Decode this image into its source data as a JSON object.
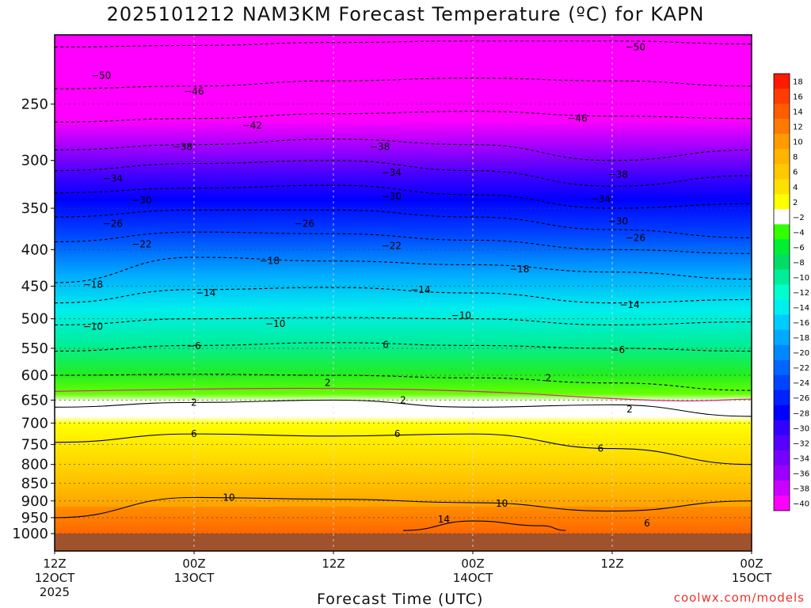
{
  "title": "2025101212 NAM3KM Forecast Temperature (ºC) for KAPN",
  "credit": "coolwx.com/models",
  "chart_data": {
    "type": "heatmap",
    "title": "2025101212 NAM3KM Forecast Temperature (ºC) for KAPN",
    "xlabel": "Forecast Time (UTC)",
    "ylabel": "",
    "x_ticks": [
      {
        "h": 0,
        "line1": "12Z",
        "line2": "12OCT",
        "line3": "2025"
      },
      {
        "h": 12,
        "line1": "00Z",
        "line2": "13OCT",
        "line3": ""
      },
      {
        "h": 24,
        "line1": "12Z",
        "line2": "",
        "line3": ""
      },
      {
        "h": 36,
        "line1": "00Z",
        "line2": "14OCT",
        "line3": ""
      },
      {
        "h": 48,
        "line1": "12Z",
        "line2": "",
        "line3": ""
      },
      {
        "h": 60,
        "line1": "00Z",
        "line2": "15OCT",
        "line3": ""
      }
    ],
    "xlim": [
      0,
      60
    ],
    "ylim_hpa": [
      1000,
      200
    ],
    "y_ticks": [
      250,
      300,
      350,
      400,
      450,
      500,
      550,
      600,
      650,
      700,
      750,
      800,
      850,
      900,
      950,
      1000
    ],
    "colorbar_ticks": [
      18,
      16,
      14,
      12,
      10,
      8,
      6,
      4,
      2,
      -2,
      -4,
      -6,
      -8,
      -10,
      -12,
      -14,
      -16,
      -18,
      -20,
      -22,
      -24,
      -26,
      -28,
      -30,
      -32,
      -34,
      -36,
      -38,
      -40
    ],
    "colorbar_colors": [
      "#ff1a00",
      "#ff3d00",
      "#ff5c00",
      "#ff7a00",
      "#ff9a00",
      "#ffb400",
      "#ffc800",
      "#ffe000",
      "#ffff00",
      "#ffffff",
      "#33ff00",
      "#00ee33",
      "#00dd66",
      "#00ee99",
      "#00ffcc",
      "#00eeee",
      "#00ccff",
      "#00aaff",
      "#0088ff",
      "#0066ff",
      "#0044ff",
      "#0022ff",
      "#0000ff",
      "#3300ff",
      "#5500ff",
      "#7700ff",
      "#9900ff",
      "#cc00ff",
      "#ff00ff"
    ],
    "contour_levels": [
      -50,
      -46,
      -42,
      -38,
      -34,
      -30,
      -26,
      -22,
      -18,
      -14,
      -10,
      -6,
      -2,
      2,
      6,
      10,
      14
    ],
    "contours": [
      {
        "level": -50,
        "points": [
          [
            0,
            208
          ],
          [
            12,
            207
          ],
          [
            24,
            205
          ],
          [
            36,
            204
          ],
          [
            48,
            204
          ],
          [
            60,
            206
          ]
        ]
      },
      {
        "level": -46,
        "points": [
          [
            0,
            238
          ],
          [
            12,
            236
          ],
          [
            24,
            232
          ],
          [
            36,
            230
          ],
          [
            48,
            232
          ],
          [
            60,
            236
          ]
        ]
      },
      {
        "level": -42,
        "points": [
          [
            0,
            265
          ],
          [
            12,
            262
          ],
          [
            24,
            258
          ],
          [
            36,
            256
          ],
          [
            48,
            260
          ],
          [
            60,
            262
          ]
        ]
      },
      {
        "level": -38,
        "points": [
          [
            0,
            290
          ],
          [
            12,
            285
          ],
          [
            24,
            280
          ],
          [
            36,
            285
          ],
          [
            48,
            300
          ],
          [
            60,
            290
          ]
        ]
      },
      {
        "level": -34,
        "points": [
          [
            0,
            310
          ],
          [
            12,
            303
          ],
          [
            24,
            300
          ],
          [
            36,
            310
          ],
          [
            48,
            326
          ],
          [
            60,
            315
          ]
        ]
      },
      {
        "level": -30,
        "points": [
          [
            0,
            333
          ],
          [
            12,
            328
          ],
          [
            24,
            325
          ],
          [
            36,
            335
          ],
          [
            48,
            350
          ],
          [
            60,
            345
          ]
        ]
      },
      {
        "level": -26,
        "points": [
          [
            0,
            360
          ],
          [
            12,
            352
          ],
          [
            24,
            352
          ],
          [
            36,
            360
          ],
          [
            48,
            375
          ],
          [
            60,
            385
          ]
        ]
      },
      {
        "level": -22,
        "points": [
          [
            0,
            390
          ],
          [
            12,
            378
          ],
          [
            24,
            380
          ],
          [
            36,
            388
          ],
          [
            48,
            400
          ],
          [
            60,
            405
          ]
        ]
      },
      {
        "level": -18,
        "points": [
          [
            0,
            445
          ],
          [
            12,
            410
          ],
          [
            24,
            415
          ],
          [
            36,
            420
          ],
          [
            48,
            430
          ],
          [
            60,
            440
          ]
        ]
      },
      {
        "level": -14,
        "points": [
          [
            0,
            475
          ],
          [
            12,
            455
          ],
          [
            24,
            452
          ],
          [
            36,
            460
          ],
          [
            48,
            475
          ],
          [
            60,
            470
          ]
        ]
      },
      {
        "level": -10,
        "points": [
          [
            0,
            510
          ],
          [
            12,
            500
          ],
          [
            24,
            498
          ],
          [
            36,
            500
          ],
          [
            48,
            510
          ],
          [
            60,
            505
          ]
        ]
      },
      {
        "level": -6,
        "points": [
          [
            0,
            555
          ],
          [
            12,
            545
          ],
          [
            24,
            540
          ],
          [
            36,
            545
          ],
          [
            48,
            550
          ],
          [
            60,
            555
          ]
        ]
      },
      {
        "level": -2,
        "points": [
          [
            0,
            600
          ],
          [
            12,
            598
          ],
          [
            24,
            600
          ],
          [
            36,
            605
          ],
          [
            48,
            615
          ],
          [
            60,
            630
          ]
        ]
      },
      {
        "level": 2,
        "points": [
          [
            0,
            665
          ],
          [
            12,
            655
          ],
          [
            24,
            650
          ],
          [
            36,
            665
          ],
          [
            48,
            660
          ],
          [
            60,
            685
          ]
        ]
      },
      {
        "level": 6,
        "points": [
          [
            0,
            745
          ],
          [
            12,
            725
          ],
          [
            24,
            730
          ],
          [
            36,
            725
          ],
          [
            48,
            760
          ],
          [
            60,
            800
          ]
        ]
      },
      {
        "level": 10,
        "points": [
          [
            0,
            950
          ],
          [
            12,
            890
          ],
          [
            24,
            895
          ],
          [
            36,
            905
          ],
          [
            48,
            930
          ],
          [
            60,
            900
          ]
        ]
      },
      {
        "level": 14,
        "points": [
          [
            30,
            990
          ],
          [
            36,
            960
          ],
          [
            42,
            975
          ],
          [
            44,
            990
          ]
        ]
      }
    ],
    "contour_labels": [
      {
        "text": "-50",
        "h": 4,
        "p": 228
      },
      {
        "text": "-50",
        "h": 50,
        "p": 208
      },
      {
        "text": "-46",
        "h": 12,
        "p": 240
      },
      {
        "text": "-46",
        "h": 45,
        "p": 262
      },
      {
        "text": "-42",
        "h": 17,
        "p": 268
      },
      {
        "text": "-38",
        "h": 11,
        "p": 287
      },
      {
        "text": "-38",
        "h": 28,
        "p": 287
      },
      {
        "text": "-38",
        "h": 48.5,
        "p": 314
      },
      {
        "text": "-34",
        "h": 5,
        "p": 318
      },
      {
        "text": "-34",
        "h": 29,
        "p": 312
      },
      {
        "text": "-34",
        "h": 47,
        "p": 340
      },
      {
        "text": "-30",
        "h": 7.5,
        "p": 341
      },
      {
        "text": "-30",
        "h": 29,
        "p": 337
      },
      {
        "text": "-30",
        "h": 48.5,
        "p": 365
      },
      {
        "text": "-26",
        "h": 5,
        "p": 368
      },
      {
        "text": "-26",
        "h": 21.5,
        "p": 368
      },
      {
        "text": "-26",
        "h": 50,
        "p": 385
      },
      {
        "text": "-22",
        "h": 7.5,
        "p": 393
      },
      {
        "text": "-22",
        "h": 29,
        "p": 395
      },
      {
        "text": "-18",
        "h": 3.3,
        "p": 448
      },
      {
        "text": "-18",
        "h": 18.5,
        "p": 415
      },
      {
        "text": "-18",
        "h": 40,
        "p": 426
      },
      {
        "text": "-14",
        "h": 13,
        "p": 460
      },
      {
        "text": "-14",
        "h": 31.5,
        "p": 455
      },
      {
        "text": "-14",
        "h": 49.5,
        "p": 478
      },
      {
        "text": "-10",
        "h": 3.3,
        "p": 513
      },
      {
        "text": "-10",
        "h": 19,
        "p": 508
      },
      {
        "text": "-10",
        "h": 35,
        "p": 495
      },
      {
        "text": "-6",
        "h": 12,
        "p": 546
      },
      {
        "text": "-6",
        "h": 48.5,
        "p": 553
      },
      {
        "text": "6",
        "h": 28.5,
        "p": 544
      },
      {
        "text": "2",
        "h": 23.5,
        "p": 615
      },
      {
        "text": "2",
        "h": 42.5,
        "p": 605
      },
      {
        "text": "2",
        "h": 12,
        "p": 655
      },
      {
        "text": "2",
        "h": 30,
        "p": 650
      },
      {
        "text": "2",
        "h": 49.5,
        "p": 670
      },
      {
        "text": "6",
        "h": 12,
        "p": 725
      },
      {
        "text": "6",
        "h": 29.5,
        "p": 725
      },
      {
        "text": "6",
        "h": 47,
        "p": 760
      },
      {
        "text": "6",
        "h": 51,
        "p": 967
      },
      {
        "text": "10",
        "h": 15,
        "p": 890
      },
      {
        "text": "10",
        "h": 38.5,
        "p": 908
      },
      {
        "text": "14",
        "h": 33.5,
        "p": 955
      }
    ]
  }
}
